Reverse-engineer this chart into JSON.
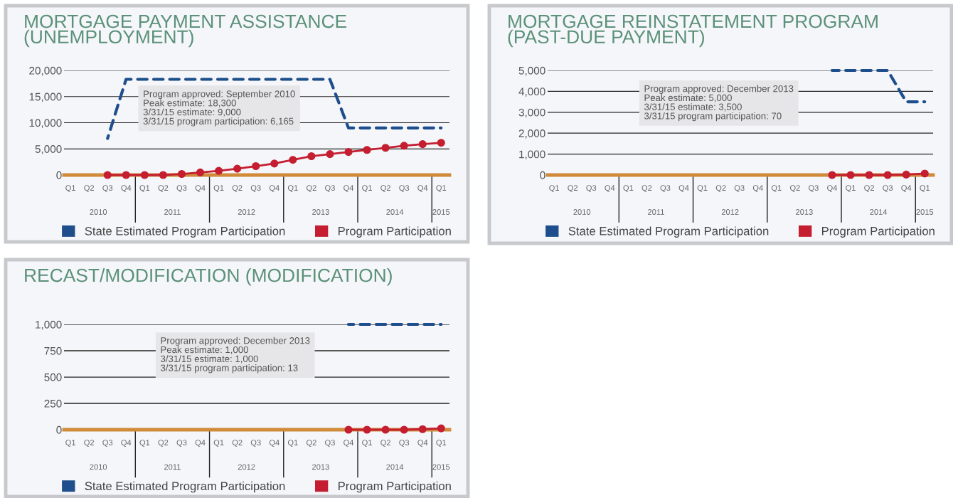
{
  "chart_data": [
    {
      "type": "line",
      "title": "MORTGAGE PAYMENT ASSISTANCE\n(UNEMPLOYMENT)",
      "categories": [
        "Q1",
        "Q2",
        "Q3",
        "Q4",
        "Q1",
        "Q2",
        "Q3",
        "Q4",
        "Q1",
        "Q2",
        "Q3",
        "Q4",
        "Q1",
        "Q2",
        "Q3",
        "Q4",
        "Q1",
        "Q2",
        "Q3",
        "Q4",
        "Q1"
      ],
      "series": [
        {
          "name": "State Estimated Program Participation",
          "color": "#1f4e8c",
          "line_style": "dashed",
          "marker": "none",
          "values": [
            null,
            null,
            7000,
            18300,
            18300,
            18300,
            18300,
            18300,
            18300,
            18300,
            18300,
            18300,
            18300,
            18300,
            18300,
            9000,
            9000,
            9000,
            9000,
            9000,
            9000
          ]
        },
        {
          "name": "Program Participation",
          "color": "#c41e30",
          "line_style": "solid",
          "marker": "circle",
          "values": [
            null,
            null,
            0,
            0,
            0,
            0,
            200,
            500,
            800,
            1200,
            1700,
            2200,
            2900,
            3600,
            4000,
            4400,
            4800,
            5200,
            5600,
            5900,
            6165
          ]
        }
      ],
      "ylim": [
        0,
        20000
      ],
      "yticks": [
        0,
        {
          "value": 5000,
          "label": "5,000"
        },
        {
          "value": 10000,
          "label": "10,000"
        },
        {
          "value": 15000,
          "label": "15,000"
        },
        {
          "value": 20000,
          "label": "20,000"
        }
      ],
      "grid": "y",
      "legend": "bottom",
      "annotations": [
        "Program approved: September 2010\nPeak estimate: 18,300\n3/31/15 estimate: 9,000\n3/31/15 program participation: 6,165",
        "2010",
        "2011",
        "2012",
        "2013",
        "2014",
        "2015"
      ]
    },
    {
      "type": "line",
      "title": "MORTGAGE REINSTATEMENT PROGRAM\n(PAST-DUE PAYMENT)",
      "categories": [
        "Q1",
        "Q2",
        "Q3",
        "Q4",
        "Q1",
        "Q2",
        "Q3",
        "Q4",
        "Q1",
        "Q2",
        "Q3",
        "Q4",
        "Q1",
        "Q2",
        "Q3",
        "Q4",
        "Q1",
        "Q2",
        "Q3",
        "Q4",
        "Q1"
      ],
      "series": [
        {
          "name": "State Estimated Program Participation",
          "color": "#1f4e8c",
          "line_style": "dashed",
          "marker": "none",
          "values": [
            null,
            null,
            null,
            null,
            null,
            null,
            null,
            null,
            null,
            null,
            null,
            null,
            null,
            null,
            null,
            5000,
            5000,
            5000,
            5000,
            3500,
            3500
          ]
        },
        {
          "name": "Program Participation",
          "color": "#c41e30",
          "line_style": "solid",
          "marker": "circle",
          "values": [
            null,
            null,
            null,
            null,
            null,
            null,
            null,
            null,
            null,
            null,
            null,
            null,
            null,
            null,
            null,
            0,
            0,
            0,
            0,
            20,
            70
          ]
        }
      ],
      "ylim": [
        0,
        5000
      ],
      "yticks": [
        0,
        {
          "value": 1000,
          "label": "1,000"
        },
        {
          "value": 2000,
          "label": "2,000"
        },
        {
          "value": 3000,
          "label": "3,000"
        },
        {
          "value": 4000,
          "label": "4,000"
        },
        {
          "value": 5000,
          "label": "5,000"
        }
      ],
      "grid": "y",
      "legend": "bottom",
      "annotations": [
        "Program approved: December 2013\nPeak estimate: 5,000\n3/31/15 estimate: 3,500\n3/31/15 program participation: 70",
        "2010",
        "2011",
        "2012",
        "2013",
        "2014",
        "2015"
      ]
    },
    {
      "type": "line",
      "title": "RECAST/MODIFICATION (MODIFICATION)",
      "categories": [
        "Q1",
        "Q2",
        "Q3",
        "Q4",
        "Q1",
        "Q2",
        "Q3",
        "Q4",
        "Q1",
        "Q2",
        "Q3",
        "Q4",
        "Q1",
        "Q2",
        "Q3",
        "Q4",
        "Q1",
        "Q2",
        "Q3",
        "Q4",
        "Q1"
      ],
      "series": [
        {
          "name": "State Estimated Program Participation",
          "color": "#1f4e8c",
          "line_style": "dashed",
          "marker": "none",
          "values": [
            null,
            null,
            null,
            null,
            null,
            null,
            null,
            null,
            null,
            null,
            null,
            null,
            null,
            null,
            null,
            1000,
            1000,
            1000,
            1000,
            1000,
            1000
          ]
        },
        {
          "name": "Program Participation",
          "color": "#c41e30",
          "line_style": "solid",
          "marker": "circle",
          "values": [
            null,
            null,
            null,
            null,
            null,
            null,
            null,
            null,
            null,
            null,
            null,
            null,
            null,
            null,
            null,
            0,
            0,
            0,
            0,
            5,
            13
          ]
        }
      ],
      "ylim": [
        0,
        1000
      ],
      "yticks": [
        0,
        250,
        500,
        750,
        {
          "value": 1000,
          "label": "1,000"
        }
      ],
      "grid": "y",
      "legend": "bottom",
      "annotations": [
        "Program approved: December 2013\nPeak estimate: 1,000\n3/31/15 estimate: 1,000\n3/31/15 program participation: 13",
        "2010",
        "2011",
        "2012",
        "2013",
        "2014",
        "2015"
      ]
    }
  ]
}
